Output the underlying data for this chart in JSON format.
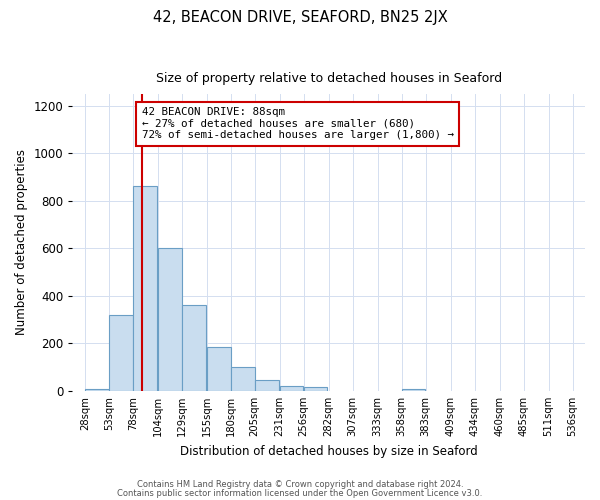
{
  "title": "42, BEACON DRIVE, SEAFORD, BN25 2JX",
  "subtitle": "Size of property relative to detached houses in Seaford",
  "xlabel": "Distribution of detached houses by size in Seaford",
  "ylabel": "Number of detached properties",
  "bar_left_edges": [
    28,
    53,
    78,
    104,
    129,
    155,
    180,
    205,
    231,
    256,
    282,
    307,
    333,
    358,
    383,
    409,
    434,
    460,
    485,
    511
  ],
  "bar_heights": [
    10,
    320,
    860,
    600,
    360,
    185,
    100,
    47,
    20,
    18,
    0,
    0,
    0,
    10,
    0,
    0,
    0,
    0,
    0,
    0
  ],
  "bin_width": 25,
  "bar_color": "#c9ddef",
  "bar_edgecolor": "#6a9ec5",
  "grid_color": "#d4dff0",
  "background_color": "#ffffff",
  "vline_x": 88,
  "vline_color": "#cc0000",
  "annotation_line1": "42 BEACON DRIVE: 88sqm",
  "annotation_line2": "← 27% of detached houses are smaller (680)",
  "annotation_line3": "72% of semi-detached houses are larger (1,800) →",
  "annotation_box_edgecolor": "#cc0000",
  "ylim": [
    0,
    1250
  ],
  "yticks": [
    0,
    200,
    400,
    600,
    800,
    1000,
    1200
  ],
  "xtick_labels": [
    "28sqm",
    "53sqm",
    "78sqm",
    "104sqm",
    "129sqm",
    "155sqm",
    "180sqm",
    "205sqm",
    "231sqm",
    "256sqm",
    "282sqm",
    "307sqm",
    "333sqm",
    "358sqm",
    "383sqm",
    "409sqm",
    "434sqm",
    "460sqm",
    "485sqm",
    "511sqm",
    "536sqm"
  ],
  "xtick_positions": [
    28,
    53,
    78,
    104,
    129,
    155,
    180,
    205,
    231,
    256,
    282,
    307,
    333,
    358,
    383,
    409,
    434,
    460,
    485,
    511,
    536
  ],
  "xlim_left": 15,
  "xlim_right": 549,
  "footer1": "Contains HM Land Registry data © Crown copyright and database right 2024.",
  "footer2": "Contains public sector information licensed under the Open Government Licence v3.0."
}
